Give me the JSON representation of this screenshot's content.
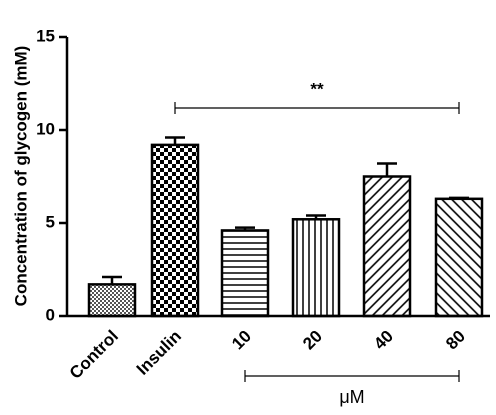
{
  "chart_data": {
    "type": "bar",
    "y_label": "Concentration of glycogen (mM)",
    "categories": [
      "Control",
      "Insulin",
      "10",
      "20",
      "40",
      "80"
    ],
    "values": [
      1.7,
      9.2,
      4.6,
      5.2,
      7.5,
      6.3
    ],
    "errors": [
      0.4,
      0.4,
      0.15,
      0.2,
      0.7,
      0.05
    ],
    "ylim": [
      0,
      15
    ],
    "yticks": [
      0,
      5,
      10,
      15
    ],
    "significance": "**",
    "unit_label": "μM",
    "color": "#000000"
  }
}
